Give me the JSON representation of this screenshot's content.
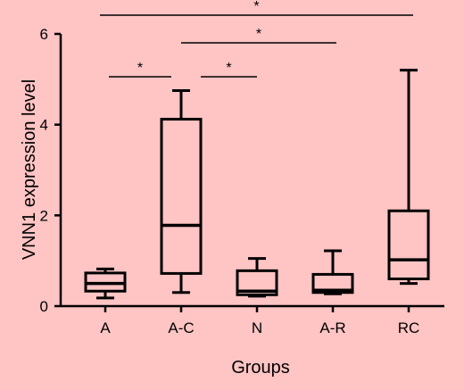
{
  "chart_data": {
    "type": "box",
    "xlabel": "Groups",
    "ylabel": "VNN1 expression level",
    "ylim": [
      0,
      6
    ],
    "yticks": [
      0,
      2,
      4,
      6
    ],
    "categories": [
      "A",
      "A-C",
      "N",
      "A-R",
      "RC"
    ],
    "boxes": [
      {
        "group": "A",
        "min": 0.18,
        "q1": 0.33,
        "median": 0.5,
        "q3": 0.73,
        "max": 0.82
      },
      {
        "group": "A-C",
        "min": 0.3,
        "q1": 0.72,
        "median": 1.78,
        "q3": 4.12,
        "max": 4.75
      },
      {
        "group": "N",
        "min": 0.22,
        "q1": 0.25,
        "median": 0.33,
        "q3": 0.78,
        "max": 1.05
      },
      {
        "group": "A-R",
        "min": 0.27,
        "q1": 0.3,
        "median": 0.35,
        "q3": 0.7,
        "max": 1.22
      },
      {
        "group": "RC",
        "min": 0.5,
        "q1": 0.6,
        "median": 1.02,
        "q3": 2.1,
        "max": 5.2
      }
    ],
    "significance": [
      {
        "from": "A",
        "to": "A-C",
        "label": "*"
      },
      {
        "from": "A-C",
        "to": "N",
        "label": "*"
      },
      {
        "from": "A-C",
        "to": "A-R",
        "label": "*"
      },
      {
        "from": "A",
        "to": "RC",
        "label": "*"
      }
    ]
  }
}
